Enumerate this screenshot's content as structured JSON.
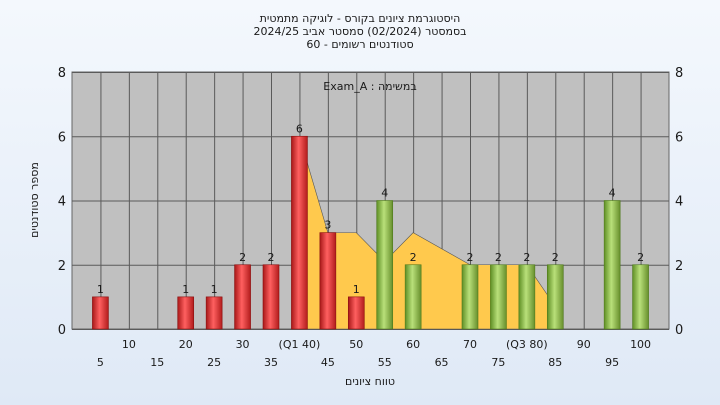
{
  "title_lines": [
    "היסטוגרמת ציונים בקורס - לוגיקה מתמטית",
    "בסמסטר  (02/2024)  סמסטר אביב 2024/25",
    "60 - סטודנטים רשומים"
  ],
  "colors": {
    "plot_bg": "#c0c0c0",
    "gridline": "#5a5a5a",
    "area_fill": "#ffc94d",
    "bar_red": "#e23a3a",
    "bar_green": "#8cbf47",
    "page_bg": "#e6eef9"
  },
  "chart_data": {
    "type": "bar",
    "title": "היסטוגרמת ציונים בקורס - לוגיקה מתמטית",
    "annotation": "Exam_A : במשימה",
    "xlabel": "טווח ציונים",
    "ylabel": "מספר סטודנטים",
    "ylim": [
      0,
      8
    ],
    "y_ticks": [
      "0",
      "2",
      "4",
      "6",
      "8"
    ],
    "grid": true,
    "x_tick_labels": [
      {
        "x": 5,
        "label": "5",
        "row": 2
      },
      {
        "x": 10,
        "label": "10",
        "row": 1
      },
      {
        "x": 15,
        "label": "15",
        "row": 2
      },
      {
        "x": 20,
        "label": "20",
        "row": 1
      },
      {
        "x": 25,
        "label": "25",
        "row": 2
      },
      {
        "x": 30,
        "label": "30",
        "row": 1
      },
      {
        "x": 35,
        "label": "35",
        "row": 2
      },
      {
        "x": 40,
        "label": "(Q1 40)",
        "row": 1
      },
      {
        "x": 45,
        "label": "45",
        "row": 2
      },
      {
        "x": 50,
        "label": "50",
        "row": 1
      },
      {
        "x": 55,
        "label": "55",
        "row": 2
      },
      {
        "x": 60,
        "label": "60",
        "row": 1
      },
      {
        "x": 65,
        "label": "65",
        "row": 2
      },
      {
        "x": 70,
        "label": "70",
        "row": 1
      },
      {
        "x": 75,
        "label": "75",
        "row": 2
      },
      {
        "x": 80,
        "label": "(Q3 80)",
        "row": 1
      },
      {
        "x": 85,
        "label": "85",
        "row": 2
      },
      {
        "x": 90,
        "label": "90",
        "row": 1
      },
      {
        "x": 95,
        "label": "95",
        "row": 2
      },
      {
        "x": 100,
        "label": "100",
        "row": 1
      }
    ],
    "bars": [
      {
        "x": 5,
        "value": 1,
        "label": "1",
        "group": "red"
      },
      {
        "x": 20,
        "value": 1,
        "label": "1",
        "group": "red"
      },
      {
        "x": 25,
        "value": 1,
        "label": "1",
        "group": "red"
      },
      {
        "x": 30,
        "value": 2,
        "label": "2",
        "group": "red"
      },
      {
        "x": 35,
        "value": 2,
        "label": "2",
        "group": "red"
      },
      {
        "x": 40,
        "value": 6,
        "label": "6",
        "group": "red"
      },
      {
        "x": 45,
        "value": 3,
        "label": "3",
        "group": "red"
      },
      {
        "x": 50,
        "value": 1,
        "label": "1",
        "group": "red"
      },
      {
        "x": 55,
        "value": 4,
        "label": "4",
        "group": "green"
      },
      {
        "x": 60,
        "value": 2,
        "label": "2",
        "group": "green"
      },
      {
        "x": 70,
        "value": 2,
        "label": "2",
        "group": "green"
      },
      {
        "x": 75,
        "value": 2,
        "label": "2",
        "group": "green"
      },
      {
        "x": 80,
        "value": 2,
        "label": "2",
        "group": "green"
      },
      {
        "x": 85,
        "value": 2,
        "label": "2",
        "group": "green"
      },
      {
        "x": 95,
        "value": 4,
        "label": "4",
        "group": "green"
      },
      {
        "x": 100,
        "value": 2,
        "label": "2",
        "group": "green"
      }
    ],
    "overlay_area": [
      {
        "x": 40,
        "y": 6
      },
      {
        "x": 45,
        "y": 3
      },
      {
        "x": 50,
        "y": 3
      },
      {
        "x": 55,
        "y": 2.1
      },
      {
        "x": 60,
        "y": 3
      },
      {
        "x": 70,
        "y": 2
      },
      {
        "x": 80,
        "y": 2
      },
      {
        "x": 85,
        "y": 0.7
      }
    ]
  }
}
